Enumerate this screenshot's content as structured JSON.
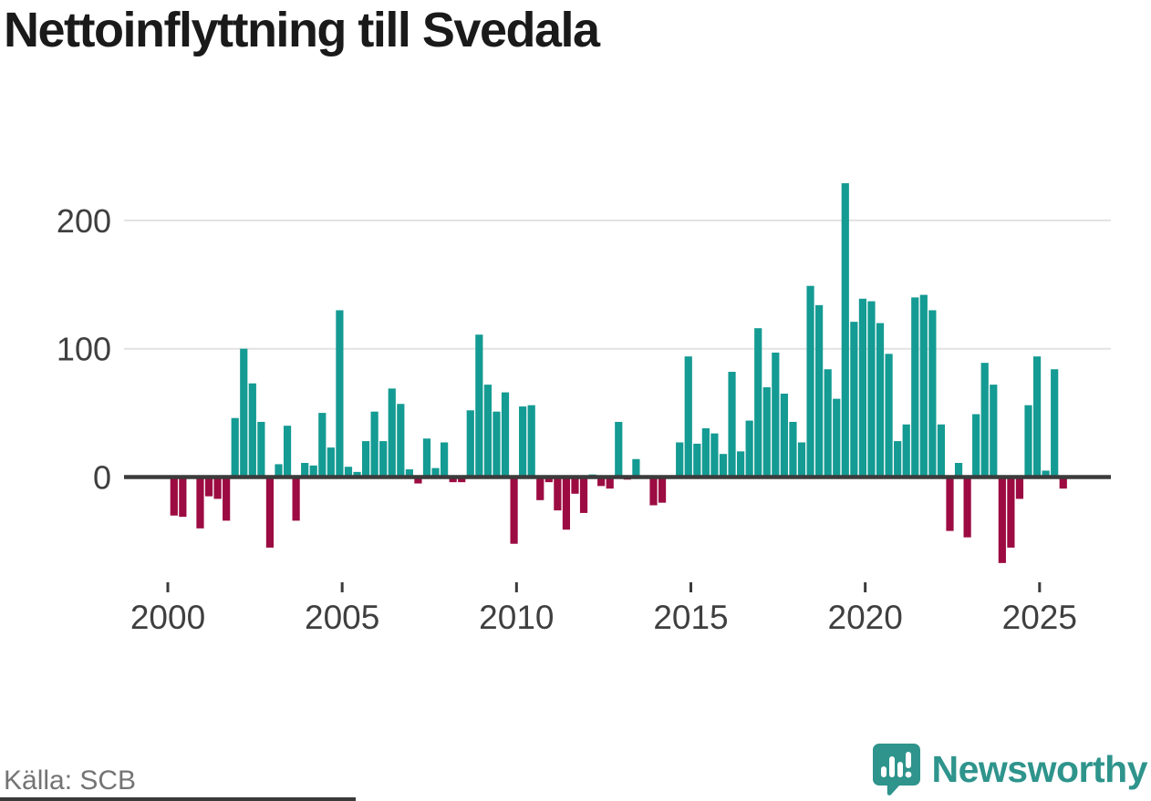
{
  "title": "Nettoinflyttning till Svedala",
  "source": "Källa: SCB",
  "branding": {
    "logo_text": "Newsworthy",
    "logo_icon": "bar-chart-speech-bubble-icon"
  },
  "colors": {
    "background": "#ffffff",
    "positive_bar": "#149b93",
    "negative_bar": "#9c0b42",
    "axis_line": "#3b3b3b",
    "gridline": "#e2e2e2",
    "tick_label": "#3f3f3f",
    "title_text": "#1a1a1a",
    "source_text": "#747474",
    "logo_teal": "#2e948c"
  },
  "chart_data": {
    "type": "bar",
    "title": "Nettoinflyttning till Svedala",
    "x_unit": "quarter",
    "start": "2000-Q1",
    "end": "2025-Q3",
    "grid": "horizontal",
    "legend": "none",
    "xticks": [
      2000,
      2005,
      2010,
      2015,
      2020,
      2025
    ],
    "yticks": [
      0,
      100,
      200
    ],
    "ylim": [
      -75,
      240
    ],
    "series_name": "Nettoinflyttning per kvartal",
    "values_by_year": [
      {
        "year": 2000,
        "q": [
          -30,
          -31,
          0,
          -40
        ]
      },
      {
        "year": 2001,
        "q": [
          -15,
          -17,
          -34,
          46
        ]
      },
      {
        "year": 2002,
        "q": [
          100,
          73,
          43,
          -55
        ]
      },
      {
        "year": 2003,
        "q": [
          10,
          40,
          -34,
          11
        ]
      },
      {
        "year": 2004,
        "q": [
          9,
          50,
          23,
          130
        ]
      },
      {
        "year": 2005,
        "q": [
          8,
          4,
          28,
          51
        ]
      },
      {
        "year": 2006,
        "q": [
          28,
          69,
          57,
          6
        ]
      },
      {
        "year": 2007,
        "q": [
          -5,
          30,
          7,
          27
        ]
      },
      {
        "year": 2008,
        "q": [
          -4,
          -4,
          52,
          111
        ]
      },
      {
        "year": 2009,
        "q": [
          72,
          51,
          66,
          -52
        ]
      },
      {
        "year": 2010,
        "q": [
          55,
          56,
          -18,
          -4
        ]
      },
      {
        "year": 2011,
        "q": [
          -26,
          -41,
          -13,
          -28
        ]
      },
      {
        "year": 2012,
        "q": [
          2,
          -7,
          -9,
          43
        ]
      },
      {
        "year": 2013,
        "q": [
          -2,
          14,
          0,
          -22
        ]
      },
      {
        "year": 2014,
        "q": [
          -20,
          0,
          27,
          94
        ]
      },
      {
        "year": 2015,
        "q": [
          26,
          38,
          34,
          18
        ]
      },
      {
        "year": 2016,
        "q": [
          82,
          20,
          44,
          116
        ]
      },
      {
        "year": 2017,
        "q": [
          70,
          97,
          65,
          43
        ]
      },
      {
        "year": 2018,
        "q": [
          27,
          149,
          134,
          84
        ]
      },
      {
        "year": 2019,
        "q": [
          61,
          229,
          121,
          139
        ]
      },
      {
        "year": 2020,
        "q": [
          137,
          120,
          96,
          28
        ]
      },
      {
        "year": 2021,
        "q": [
          41,
          140,
          142,
          130
        ]
      },
      {
        "year": 2022,
        "q": [
          41,
          -42,
          11,
          -47
        ]
      },
      {
        "year": 2023,
        "q": [
          49,
          89,
          72,
          -67
        ]
      },
      {
        "year": 2024,
        "q": [
          -55,
          -17,
          56,
          94
        ]
      },
      {
        "year": 2025,
        "q": [
          5,
          84,
          -9
        ]
      }
    ]
  }
}
